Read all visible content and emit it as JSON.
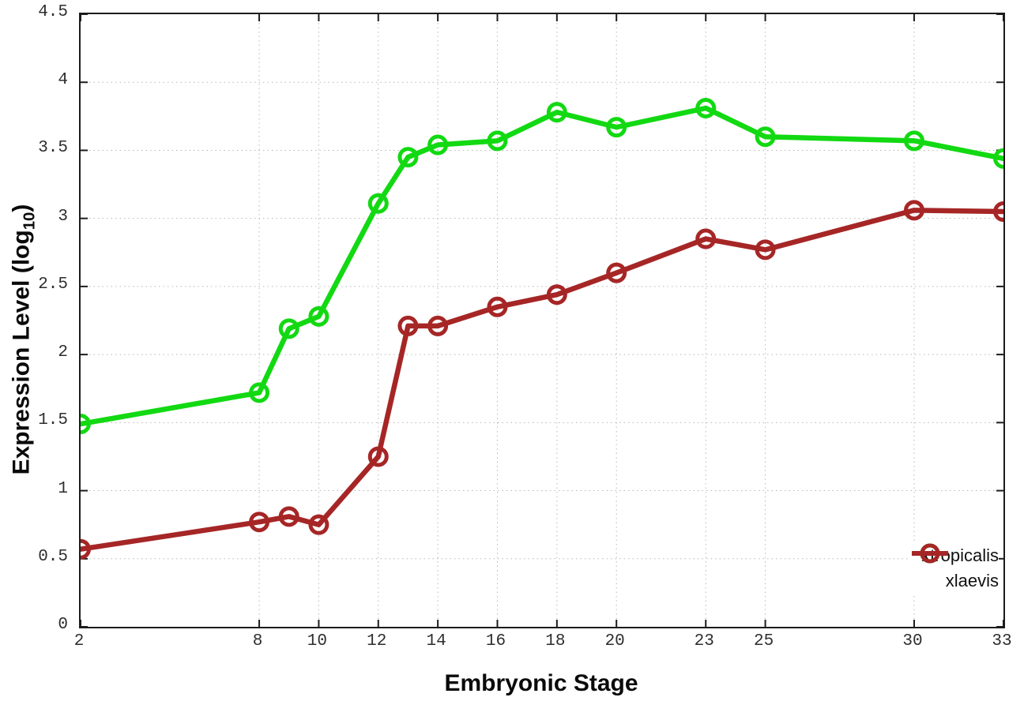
{
  "figure": {
    "xlabel": "Embryonic Stage",
    "ylabel": {
      "prefix": "Expression Level (log",
      "subscript": "10",
      "suffix": ")"
    }
  },
  "chart_data": {
    "type": "line",
    "title": "",
    "xlabel": "Embryonic Stage",
    "ylabel": "Expression Level (log10)",
    "xlim": [
      2,
      33
    ],
    "ylim": [
      0,
      4.5
    ],
    "x_ticks": [
      2,
      8,
      10,
      12,
      14,
      16,
      18,
      20,
      23,
      25,
      30,
      33
    ],
    "y_ticks": [
      "0",
      "0.5",
      "1",
      "1.5",
      "2",
      "2.5",
      "3",
      "3.5",
      "4",
      "4.5"
    ],
    "grid": true,
    "legend_position": "bottom-right",
    "marker": "open-circle",
    "x": [
      2,
      8,
      9,
      10,
      12,
      13,
      14,
      16,
      18,
      20,
      23,
      25,
      30,
      33
    ],
    "series": [
      {
        "name": "xtropicalis",
        "color": "#12d912",
        "values": [
          1.49,
          1.72,
          2.19,
          2.28,
          3.11,
          3.45,
          3.54,
          3.57,
          3.78,
          3.67,
          3.81,
          3.6,
          3.57,
          3.44
        ]
      },
      {
        "name": "xlaevis",
        "color": "#a62626",
        "values": [
          0.57,
          0.77,
          0.81,
          0.75,
          1.25,
          2.21,
          2.21,
          2.35,
          2.44,
          2.6,
          2.85,
          2.77,
          3.06,
          3.05
        ]
      }
    ],
    "style": {
      "grid_color": "#b8b8b8",
      "axis_color": "#1c1c1c",
      "line_width": 6.5,
      "marker_radius": 10.5,
      "marker_stroke": 5
    }
  }
}
